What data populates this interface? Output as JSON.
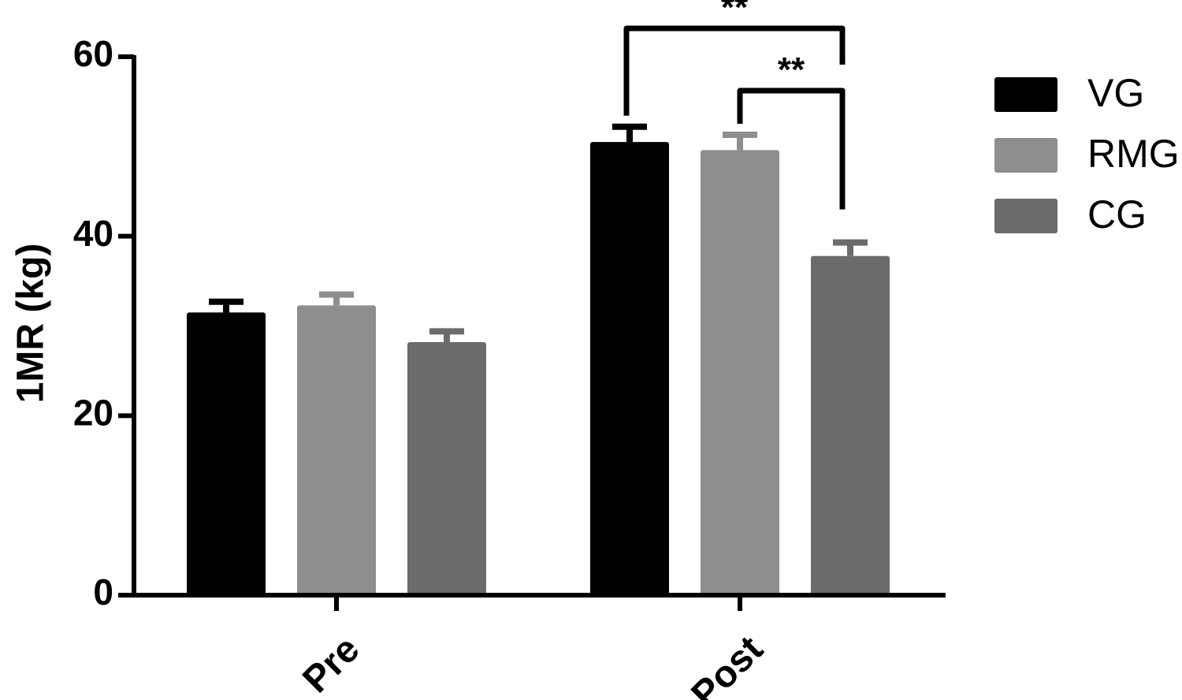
{
  "chart_data": {
    "type": "bar",
    "categories": [
      "Pre",
      "Post"
    ],
    "series": [
      {
        "name": "VG",
        "color": "#000000",
        "values": [
          31.5,
          50.5
        ],
        "errors": [
          1.2,
          1.7
        ]
      },
      {
        "name": "RMG",
        "color": "#8e8e8e",
        "values": [
          32.3,
          49.6
        ],
        "errors": [
          1.2,
          1.7
        ]
      },
      {
        "name": "CG",
        "color": "#6b6b6b",
        "values": [
          28.2,
          37.8
        ],
        "errors": [
          1.2,
          1.5
        ]
      }
    ],
    "ylabel": "1MR (kg)",
    "xlabel": "",
    "title": "",
    "ylim": [
      0,
      60
    ],
    "yticks": [
      0,
      20,
      40,
      60
    ],
    "legend_position": "right",
    "grid": false,
    "significance": [
      {
        "category": "Post",
        "from_series": "VG",
        "to_series": "CG",
        "label": "**"
      },
      {
        "category": "Post",
        "from_series": "RMG",
        "to_series": "CG",
        "label": "**"
      }
    ]
  }
}
